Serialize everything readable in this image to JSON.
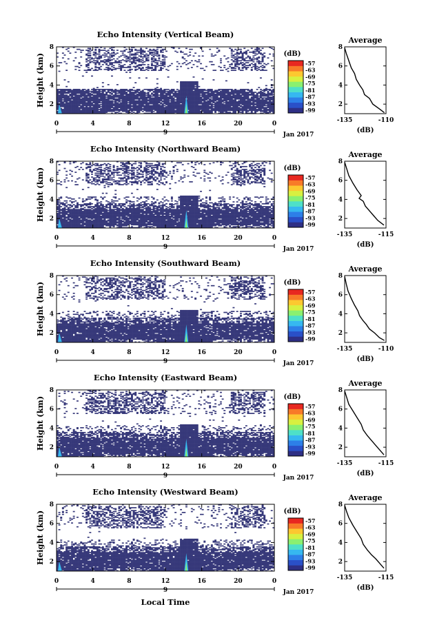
{
  "x_axis_label": "Local Time",
  "date_label": "Jan 2017",
  "day_label": "9",
  "colorbar": {
    "unit": "(dB)",
    "ticks": [
      "-57",
      "-63",
      "-69",
      "-75",
      "-81",
      "-87",
      "-93",
      "-99"
    ],
    "colors": [
      "#2e2f85",
      "#2a50c8",
      "#2d7fe8",
      "#36b8f0",
      "#4ee0c8",
      "#8af070",
      "#d8f040",
      "#fcc830",
      "#f87a28",
      "#e82820"
    ]
  },
  "panel_color": "#37397a",
  "chart_data": [
    {
      "type": "heatmap",
      "title": "Echo Intensity (Vertical Beam)",
      "ylabel": "Height (km)",
      "xlim": [
        0,
        24
      ],
      "ylim": [
        1,
        8
      ],
      "x_ticks": [
        "0",
        "4",
        "8",
        "12",
        "16",
        "20",
        "0"
      ],
      "y_ticks": [
        "2",
        "4",
        "6",
        "8"
      ],
      "profile": {
        "title": "Average",
        "xlabel": "(dB)",
        "xlim": [
          -135,
          -110
        ],
        "x_ticks": [
          "-135",
          "-110"
        ],
        "y_ticks": [
          "2",
          "4",
          "6",
          "8"
        ],
        "points": [
          [
            -135,
            7.9
          ],
          [
            -134,
            7.3
          ],
          [
            -133,
            6.8
          ],
          [
            -132,
            6.3
          ],
          [
            -131,
            5.8
          ],
          [
            -129,
            5.2
          ],
          [
            -128,
            4.6
          ],
          [
            -126,
            4.0
          ],
          [
            -124,
            3.5
          ],
          [
            -123,
            3.0
          ],
          [
            -120,
            2.6
          ],
          [
            -118,
            2.0
          ],
          [
            -114,
            1.5
          ],
          [
            -111,
            1.1
          ]
        ]
      }
    },
    {
      "type": "heatmap",
      "title": "Echo Intensity (Northward Beam)",
      "ylabel": "Height (km)",
      "xlim": [
        0,
        24
      ],
      "ylim": [
        1,
        8
      ],
      "x_ticks": [
        "0",
        "4",
        "8",
        "12",
        "16",
        "20",
        "0"
      ],
      "y_ticks": [
        "2",
        "4",
        "6",
        "8"
      ],
      "profile": {
        "title": "Average",
        "xlabel": "(dB)",
        "xlim": [
          -135,
          -115
        ],
        "x_ticks": [
          "-135",
          "-115"
        ],
        "y_ticks": [
          "2",
          "4",
          "6",
          "8"
        ],
        "points": [
          [
            -135,
            7.9
          ],
          [
            -134,
            7.2
          ],
          [
            -133,
            6.5
          ],
          [
            -131,
            5.7
          ],
          [
            -129,
            5.0
          ],
          [
            -127,
            4.4
          ],
          [
            -128,
            4.1
          ],
          [
            -126,
            3.8
          ],
          [
            -125,
            3.3
          ],
          [
            -123,
            2.8
          ],
          [
            -121,
            2.3
          ],
          [
            -119,
            1.8
          ],
          [
            -116,
            1.3
          ]
        ]
      }
    },
    {
      "type": "heatmap",
      "title": "Echo Intensity (Southward Beam)",
      "ylabel": "Height (km)",
      "xlim": [
        0,
        24
      ],
      "ylim": [
        1,
        8
      ],
      "x_ticks": [
        "0",
        "4",
        "8",
        "12",
        "16",
        "20",
        "0"
      ],
      "y_ticks": [
        "2",
        "4",
        "6",
        "8"
      ],
      "profile": {
        "title": "Average",
        "xlabel": "(dB)",
        "xlim": [
          -135,
          -110
        ],
        "x_ticks": [
          "-135",
          "-110"
        ],
        "y_ticks": [
          "2",
          "4",
          "6",
          "8"
        ],
        "points": [
          [
            -135,
            7.9
          ],
          [
            -134,
            7.1
          ],
          [
            -133,
            6.4
          ],
          [
            -131,
            5.6
          ],
          [
            -129,
            4.9
          ],
          [
            -127,
            4.3
          ],
          [
            -126,
            3.8
          ],
          [
            -124,
            3.3
          ],
          [
            -122,
            2.9
          ],
          [
            -120,
            2.4
          ],
          [
            -117,
            2.0
          ],
          [
            -114,
            1.5
          ],
          [
            -111,
            1.2
          ]
        ]
      }
    },
    {
      "type": "heatmap",
      "title": "Echo Intensity (Eastward Beam)",
      "ylabel": "Height (km)",
      "xlim": [
        0,
        24
      ],
      "ylim": [
        1,
        8
      ],
      "x_ticks": [
        "0",
        "4",
        "8",
        "12",
        "16",
        "20",
        "0"
      ],
      "y_ticks": [
        "2",
        "4",
        "6",
        "8"
      ],
      "profile": {
        "title": "Average",
        "xlabel": "(dB)",
        "xlim": [
          -135,
          -115
        ],
        "x_ticks": [
          "-135",
          "-115"
        ],
        "y_ticks": [
          "2",
          "4",
          "6",
          "8"
        ],
        "points": [
          [
            -135,
            7.9
          ],
          [
            -134,
            7.2
          ],
          [
            -133,
            6.5
          ],
          [
            -131,
            5.8
          ],
          [
            -129,
            5.1
          ],
          [
            -127,
            4.4
          ],
          [
            -126,
            3.8
          ],
          [
            -124,
            3.2
          ],
          [
            -122,
            2.7
          ],
          [
            -120,
            2.2
          ],
          [
            -118,
            1.7
          ],
          [
            -116,
            1.2
          ]
        ]
      }
    },
    {
      "type": "heatmap",
      "title": "Echo Intensity (Westward Beam)",
      "ylabel": "Height (km)",
      "xlim": [
        0,
        24
      ],
      "ylim": [
        1,
        8
      ],
      "x_ticks": [
        "0",
        "4",
        "8",
        "12",
        "16",
        "20",
        "0"
      ],
      "y_ticks": [
        "2",
        "4",
        "6",
        "8"
      ],
      "profile": {
        "title": "Average",
        "xlabel": "(dB)",
        "xlim": [
          -135,
          -115
        ],
        "x_ticks": [
          "-135",
          "-115"
        ],
        "y_ticks": [
          "2",
          "4",
          "6",
          "8"
        ],
        "points": [
          [
            -135,
            7.9
          ],
          [
            -134,
            7.2
          ],
          [
            -133,
            6.6
          ],
          [
            -131,
            5.8
          ],
          [
            -129,
            5.1
          ],
          [
            -127,
            4.4
          ],
          [
            -126,
            3.8
          ],
          [
            -124,
            3.2
          ],
          [
            -122,
            2.7
          ],
          [
            -120,
            2.3
          ],
          [
            -118,
            1.8
          ],
          [
            -116,
            1.3
          ]
        ]
      }
    }
  ]
}
